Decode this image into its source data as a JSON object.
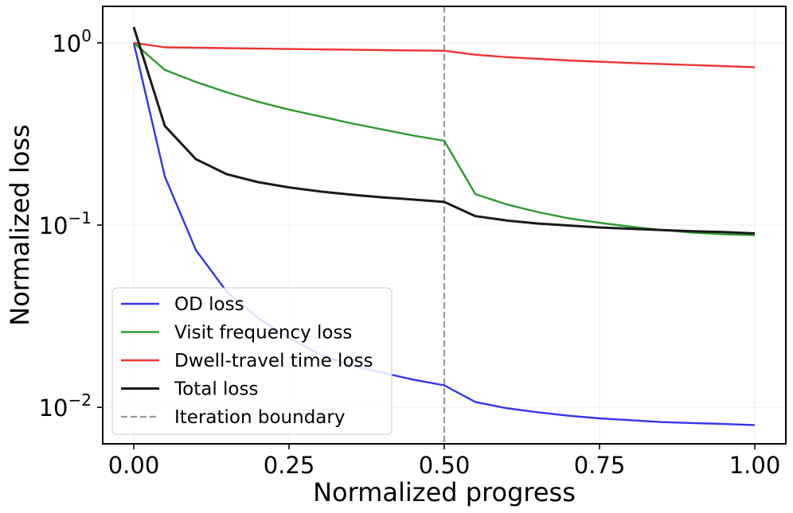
{
  "chart_data": {
    "type": "line",
    "title": "",
    "xlabel": "Normalized progress",
    "ylabel": "Normalized loss",
    "xlim": [
      -0.05,
      1.05
    ],
    "ylim_log10": [
      -2.2,
      0.2
    ],
    "yscale": "log",
    "grid": true,
    "legend_position": "lower-left",
    "x_ticks": [
      {
        "value": 0.0,
        "label": "0.00"
      },
      {
        "value": 0.25,
        "label": "0.25"
      },
      {
        "value": 0.5,
        "label": "0.50"
      },
      {
        "value": 0.75,
        "label": "0.75"
      },
      {
        "value": 1.0,
        "label": "1.00"
      }
    ],
    "y_ticks": [
      {
        "value": 1,
        "base": "10",
        "exp": "0"
      },
      {
        "value": 0.1,
        "base": "10",
        "exp": "−1"
      },
      {
        "value": 0.01,
        "base": "10",
        "exp": "−2"
      }
    ],
    "series": [
      {
        "name": "OD loss",
        "color": "#3333ee",
        "x": [
          0.0,
          0.05,
          0.1,
          0.15,
          0.2,
          0.25,
          0.3,
          0.35,
          0.4,
          0.45,
          0.5,
          0.55,
          0.6,
          0.65,
          0.7,
          0.75,
          0.8,
          0.85,
          0.9,
          0.95,
          1.0
        ],
        "y": [
          1.0,
          0.185,
          0.073,
          0.043,
          0.031,
          0.024,
          0.0195,
          0.017,
          0.0155,
          0.0142,
          0.0132,
          0.0107,
          0.0099,
          0.0094,
          0.009,
          0.0087,
          0.0085,
          0.0083,
          0.0082,
          0.0081,
          0.008
        ]
      },
      {
        "name": "Visit frequency loss",
        "color": "#2e9a2e",
        "x": [
          0.0,
          0.05,
          0.1,
          0.15,
          0.2,
          0.25,
          0.3,
          0.35,
          0.4,
          0.45,
          0.5,
          0.55,
          0.6,
          0.65,
          0.7,
          0.75,
          0.8,
          0.85,
          0.9,
          0.95,
          1.0
        ],
        "y": [
          1.0,
          0.71,
          0.61,
          0.535,
          0.475,
          0.43,
          0.395,
          0.362,
          0.335,
          0.31,
          0.29,
          0.148,
          0.13,
          0.118,
          0.109,
          0.103,
          0.098,
          0.094,
          0.091,
          0.089,
          0.088
        ]
      },
      {
        "name": "Dwell-travel time loss",
        "color": "#ee3333",
        "x": [
          0.0,
          0.05,
          0.1,
          0.2,
          0.3,
          0.4,
          0.5,
          0.55,
          0.6,
          0.7,
          0.8,
          0.9,
          1.0
        ],
        "y": [
          1.0,
          0.945,
          0.94,
          0.93,
          0.92,
          0.912,
          0.905,
          0.86,
          0.835,
          0.8,
          0.775,
          0.755,
          0.735
        ]
      },
      {
        "name": "Total loss",
        "color": "#1a1a1a",
        "x": [
          0.0,
          0.05,
          0.1,
          0.15,
          0.2,
          0.25,
          0.3,
          0.35,
          0.4,
          0.45,
          0.5,
          0.55,
          0.6,
          0.65,
          0.7,
          0.75,
          0.8,
          0.85,
          0.9,
          0.95,
          1.0
        ],
        "y": [
          1.22,
          0.35,
          0.23,
          0.19,
          0.172,
          0.161,
          0.153,
          0.147,
          0.142,
          0.138,
          0.134,
          0.112,
          0.106,
          0.102,
          0.0995,
          0.097,
          0.0955,
          0.094,
          0.0925,
          0.0915,
          0.09
        ]
      }
    ],
    "annotations": [
      {
        "name": "Iteration boundary",
        "type": "vline",
        "x": 0.5,
        "color": "#999999",
        "style": "dashed"
      }
    ]
  }
}
